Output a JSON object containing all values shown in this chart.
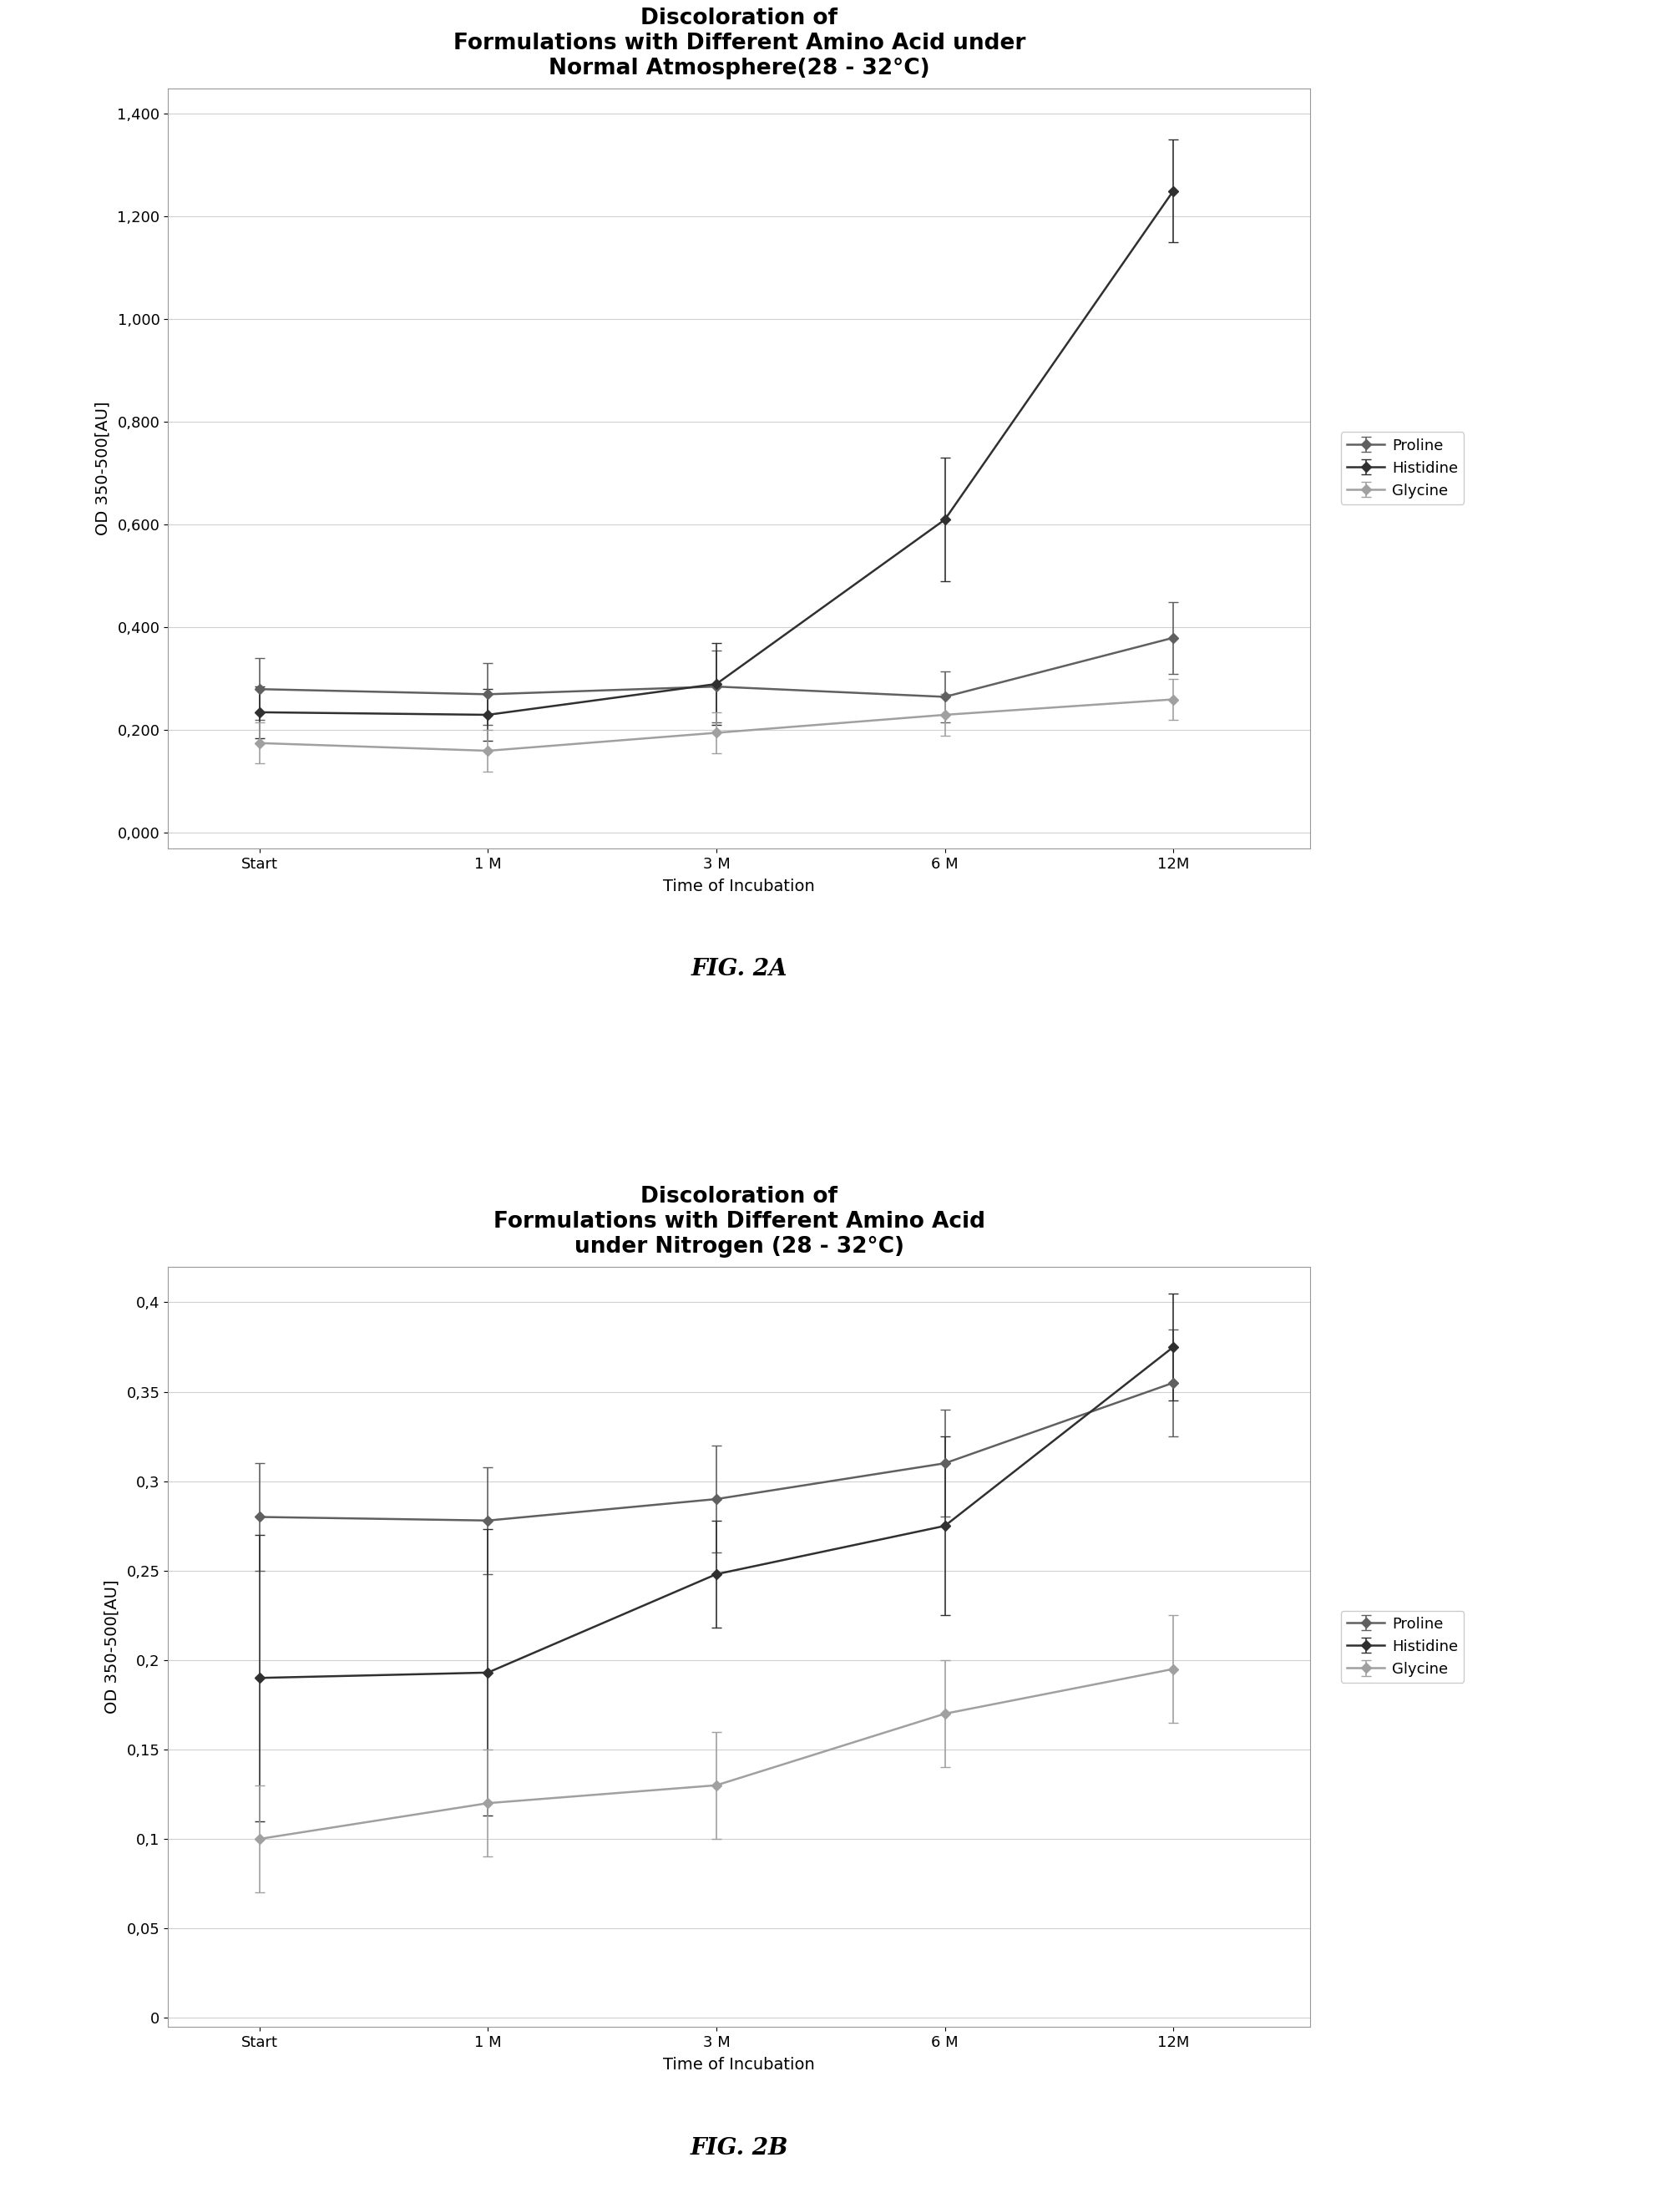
{
  "fig2a": {
    "title": "Discoloration of\nFormulations with Different Amino Acid under\nNormal Atmosphere(28 - 32°C)",
    "xlabel": "Time of Incubation",
    "ylabel": "OD 350-500[AU]",
    "x_labels": [
      "Start",
      "1 M",
      "3 M",
      "6 M",
      "12M"
    ],
    "x_values": [
      0,
      1,
      2,
      3,
      4
    ],
    "proline": [
      0.28,
      0.27,
      0.285,
      0.265,
      0.38
    ],
    "histidine": [
      0.235,
      0.23,
      0.29,
      0.61,
      1.25
    ],
    "glycine": [
      0.175,
      0.16,
      0.195,
      0.23,
      0.26
    ],
    "proline_err": [
      0.06,
      0.06,
      0.07,
      0.05,
      0.07
    ],
    "histidine_err": [
      0.05,
      0.05,
      0.08,
      0.12,
      0.1
    ],
    "glycine_err": [
      0.04,
      0.04,
      0.04,
      0.04,
      0.04
    ],
    "ylim": [
      -0.03,
      1.45
    ],
    "yticks": [
      0.0,
      0.2,
      0.4,
      0.6,
      0.8,
      1.0,
      1.2,
      1.4
    ],
    "ytick_labels": [
      "0,000",
      "0,200",
      "0,400",
      "0,600",
      "0,800",
      "1,000",
      "1,200",
      "1,400"
    ],
    "figcaption": "FIG. 2A"
  },
  "fig2b": {
    "title": "Discoloration of\nFormulations with Different Amino Acid\nunder Nitrogen (28 - 32°C)",
    "xlabel": "Time of Incubation",
    "ylabel": "OD 350-500[AU]",
    "x_labels": [
      "Start",
      "1 M",
      "3 M",
      "6 M",
      "12M"
    ],
    "x_values": [
      0,
      1,
      2,
      3,
      4
    ],
    "proline": [
      0.28,
      0.278,
      0.29,
      0.31,
      0.355
    ],
    "histidine": [
      0.19,
      0.193,
      0.248,
      0.275,
      0.375
    ],
    "glycine": [
      0.1,
      0.12,
      0.13,
      0.17,
      0.195
    ],
    "proline_err": [
      0.03,
      0.03,
      0.03,
      0.03,
      0.03
    ],
    "histidine_err": [
      0.08,
      0.08,
      0.03,
      0.05,
      0.03
    ],
    "glycine_err": [
      0.03,
      0.03,
      0.03,
      0.03,
      0.03
    ],
    "ylim": [
      -0.005,
      0.42
    ],
    "yticks": [
      0.0,
      0.05,
      0.1,
      0.15,
      0.2,
      0.25,
      0.3,
      0.35,
      0.4
    ],
    "ytick_labels": [
      "0",
      "0,05",
      "0,1",
      "0,15",
      "0,2",
      "0,25",
      "0,3",
      "0,35",
      "0,4"
    ],
    "figcaption": "FIG. 2B"
  },
  "proline_color": "#606060",
  "histidine_color": "#303030",
  "glycine_color": "#a0a0a0",
  "line_width": 1.8,
  "marker_size": 6,
  "marker_style": "D",
  "background_color": "#ffffff",
  "grid_color": "#d0d0d0",
  "title_fontsize": 19,
  "label_fontsize": 14,
  "tick_fontsize": 13,
  "legend_fontsize": 13,
  "caption_fontsize": 20
}
